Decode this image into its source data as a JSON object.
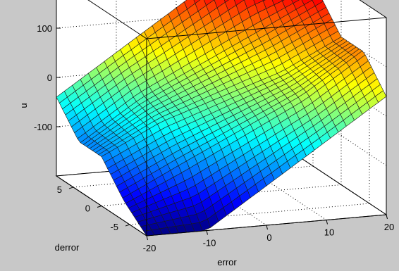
{
  "chart_data": {
    "type": "surface",
    "title": "",
    "xlabel": "error",
    "ylabel": "derror",
    "zlabel": "u",
    "xlim": [
      -20,
      20
    ],
    "ylim": [
      -8,
      8
    ],
    "zlim": [
      -200,
      200
    ],
    "x_ticks": [
      "-20",
      "-10",
      "0",
      "10",
      "20"
    ],
    "y_ticks": [
      "-5",
      "0",
      "5"
    ],
    "z_ticks": [
      "-100",
      "0",
      "100"
    ],
    "grid": true,
    "colormap": "jet",
    "surface": {
      "x": [
        -20,
        -10,
        0,
        10,
        20
      ],
      "y": [
        -8,
        -4,
        0,
        4,
        8
      ],
      "z_rows_by_y": [
        [
          -200,
          -200,
          -120,
          -40,
          40
        ],
        [
          -160,
          -100,
          -40,
          20,
          100
        ],
        [
          -100,
          -40,
          0,
          40,
          100
        ],
        [
          -100,
          -20,
          40,
          100,
          160
        ],
        [
          -40,
          40,
          120,
          200,
          200
        ]
      ]
    }
  }
}
